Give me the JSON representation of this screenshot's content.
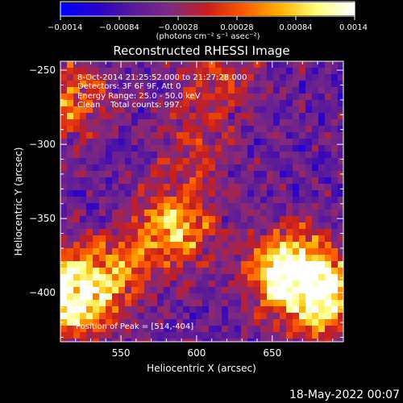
{
  "chart_data": {
    "type": "heatmap",
    "title": "Reconstructed RHESSI Image",
    "xlabel": "Heliocentric X (arcsec)",
    "ylabel": "Heliocentric Y (arcsec)",
    "xlim": [
      510,
      697
    ],
    "ylim": [
      -433,
      -244
    ],
    "x_ticks": [
      550,
      600,
      650
    ],
    "y_ticks": [
      -250,
      -300,
      -350,
      -400
    ],
    "x_tick_labels": [
      "550",
      "600",
      "650"
    ],
    "y_tick_labels": [
      "−250",
      "−300",
      "−350",
      "−400"
    ],
    "colorbar": {
      "min": -0.0014,
      "max": 0.0014,
      "ticks": [
        -0.0014,
        -0.00084,
        -0.00028,
        0.00028,
        0.00084,
        0.0014
      ],
      "tick_labels": [
        "−0.0014",
        "−0.00084",
        "−0.00028",
        "0.00028",
        "0.00084",
        "0.0014"
      ],
      "unit_label": "(photons cm⁻² s⁻¹ asec⁻²)",
      "colors": [
        "#0000ff",
        "#2a00c8",
        "#5a1a9a",
        "#802a80",
        "#c81e1e",
        "#ff5a00",
        "#ffb400",
        "#ffff80",
        "#ffffff"
      ]
    },
    "annotations": [
      "8-Oct-2014 21:25:52.000 to 21:27:28.000",
      "Detectors: 3F 6F 9F, Att 0",
      "Energy Range: 25.0 - 50.0 keV",
      "Clean    Total counts: 997."
    ],
    "peak_label": "Position of Peak = [514,-404]",
    "peak_position": [
      514,
      -404
    ],
    "bright_regions": [
      {
        "x": 515,
        "y": -403,
        "level": 1.0
      },
      {
        "x": 660,
        "y": -385,
        "level": 0.95
      },
      {
        "x": 683,
        "y": -402,
        "level": 0.9
      },
      {
        "x": 585,
        "y": -355,
        "level": 0.7
      },
      {
        "x": 515,
        "y": -270,
        "level": 0.55
      },
      {
        "x": 545,
        "y": -385,
        "level": 0.5
      },
      {
        "x": 615,
        "y": -252,
        "level": 0.35
      },
      {
        "x": 600,
        "y": -300,
        "level": 0.3
      }
    ],
    "grid": false,
    "legend": "colorbar-top"
  },
  "footer": {
    "timestamp": "18-May-2022 00:07"
  }
}
